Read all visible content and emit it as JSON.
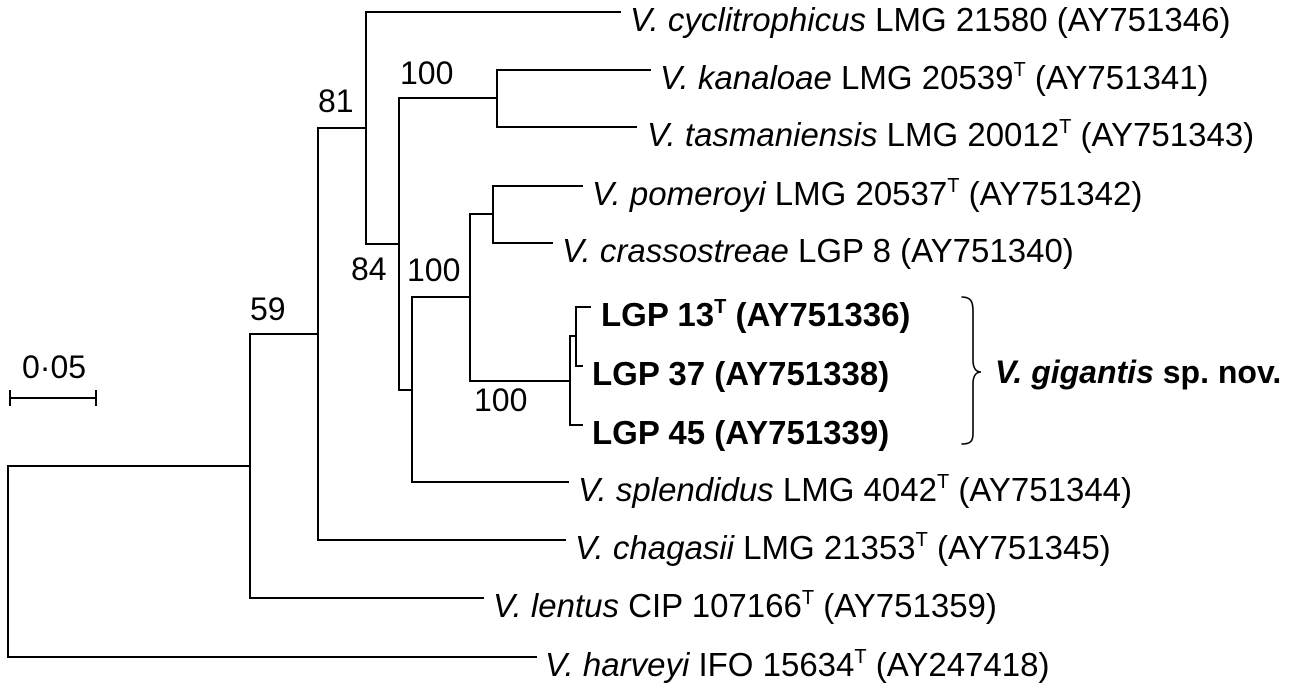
{
  "tree": {
    "taxa": [
      {
        "species": "V. cyclitrophicus",
        "strain": "LMG 21580",
        "accession": "(AY751346)"
      },
      {
        "species": "V. kanaloae",
        "strain": "LMG 20539",
        "type_mark": "T",
        "accession": "(AY751341)"
      },
      {
        "species": "V. tasmaniensis",
        "strain": "LMG 20012",
        "type_mark": "T",
        "accession": "(AY751343)"
      },
      {
        "species": "V. pomeroyi",
        "strain": "LMG 20537",
        "type_mark": "T",
        "accession": "(AY751342)"
      },
      {
        "species": "V. crassostreae",
        "strain": "LGP 8",
        "accession": "(AY751340)"
      },
      {
        "strain": "LGP 13",
        "type_mark": "T",
        "accession": "(AY751336)"
      },
      {
        "strain": "LGP 37",
        "accession": "(AY751338)"
      },
      {
        "strain": "LGP 45",
        "accession": "(AY751339)"
      },
      {
        "species": "V. splendidus",
        "strain": "LMG 4042",
        "type_mark": "T",
        "accession": "(AY751344)"
      },
      {
        "species": "V. chagasii",
        "strain": "LMG 21353",
        "type_mark": "T",
        "accession": "(AY751345)"
      },
      {
        "species": "V. lentus",
        "strain": "CIP 107166",
        "type_mark": "T",
        "accession": "(AY751359)"
      },
      {
        "species": "V. harveyi",
        "strain": "IFO 15634",
        "type_mark": "T",
        "accession": "(AY247418)"
      }
    ],
    "bootstrap_values": [
      100,
      81,
      84,
      100,
      59,
      100
    ]
  },
  "scale_bar": {
    "label": "0·05"
  },
  "clade_bracket": {
    "name": "V. gigantis",
    "rank": "sp. nov."
  },
  "colors": {
    "ink": "#000000",
    "background": "#ffffff"
  }
}
